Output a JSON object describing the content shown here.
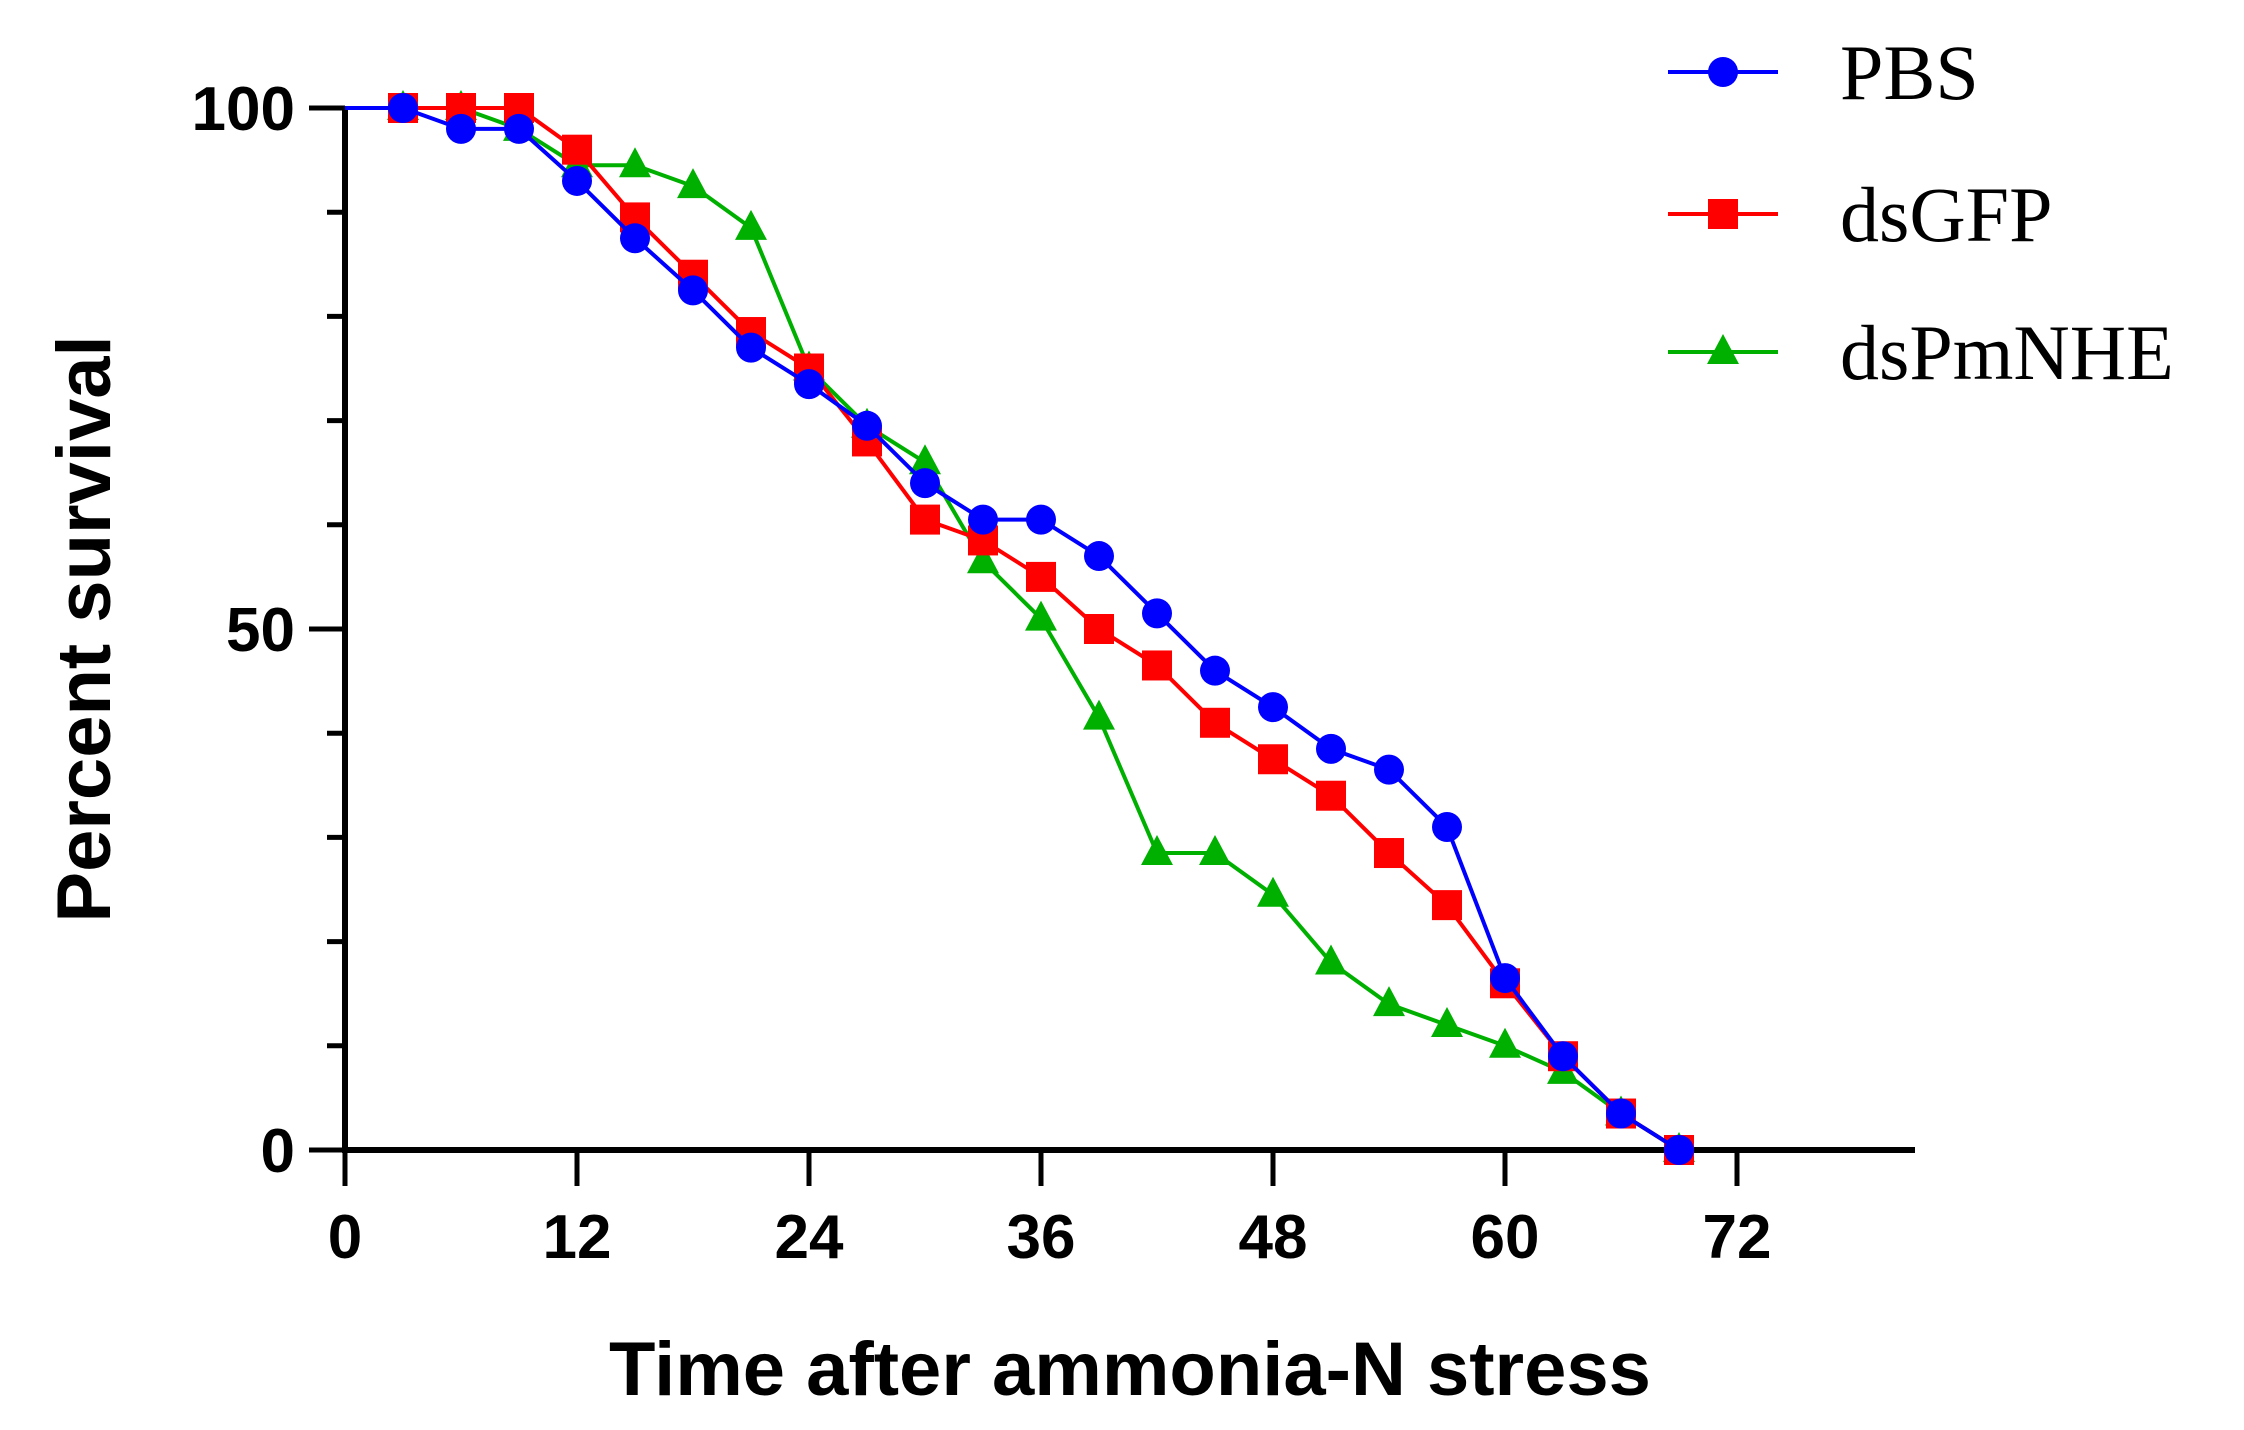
{
  "chart_data": {
    "type": "line",
    "title": "",
    "xlabel": "Time after ammonia-N stress",
    "ylabel": "Percent survival",
    "xlim": [
      0,
      80
    ],
    "ylim": [
      0,
      100
    ],
    "x_ticks": [
      0,
      12,
      24,
      36,
      48,
      60,
      72
    ],
    "x_tick_labels": [
      "0",
      "12",
      "24",
      "36",
      "48",
      "60",
      "72"
    ],
    "y_ticks": [
      0,
      50,
      100
    ],
    "y_tick_labels": [
      "0",
      "50",
      "100"
    ],
    "legend_position": "top-right",
    "series": [
      {
        "name": "PBS",
        "color": "#0000ff",
        "marker": "circle",
        "x": [
          0,
          3,
          6,
          9,
          12,
          15,
          18,
          21,
          24,
          27,
          30,
          33,
          36,
          39,
          42,
          45,
          48,
          51,
          54,
          57,
          60,
          63,
          66,
          69
        ],
        "y": [
          100,
          100,
          98,
          98,
          93,
          87.5,
          82.5,
          77,
          73.5,
          69.5,
          64,
          60.5,
          60.5,
          57,
          51.5,
          46,
          42.5,
          38.5,
          36.5,
          31,
          16.5,
          9,
          3.5,
          0
        ]
      },
      {
        "name": "dsGFP",
        "color": "#ff0000",
        "marker": "square",
        "x": [
          0,
          3,
          6,
          9,
          12,
          15,
          18,
          21,
          24,
          27,
          30,
          33,
          36,
          39,
          42,
          45,
          48,
          51,
          54,
          57,
          60,
          63,
          66,
          69
        ],
        "y": [
          100,
          100,
          100,
          100,
          96,
          89.5,
          84,
          78.5,
          75,
          68,
          60.5,
          58.5,
          55,
          50,
          46.5,
          41,
          37.5,
          34,
          28.5,
          23.5,
          16,
          9,
          3.5,
          0
        ]
      },
      {
        "name": "dsPmNHE",
        "color": "#00b000",
        "marker": "triangle",
        "x": [
          0,
          3,
          6,
          9,
          12,
          15,
          18,
          21,
          24,
          27,
          30,
          33,
          36,
          39,
          42,
          45,
          48,
          51,
          54,
          57,
          60,
          63,
          66,
          69
        ],
        "y": [
          100,
          100,
          100,
          98,
          94.5,
          94.5,
          92.5,
          88.5,
          75,
          69.5,
          66,
          56.5,
          51,
          41.5,
          28.5,
          28.5,
          24.5,
          18,
          14,
          12,
          10,
          7.5,
          3.5,
          0
        ]
      }
    ]
  }
}
